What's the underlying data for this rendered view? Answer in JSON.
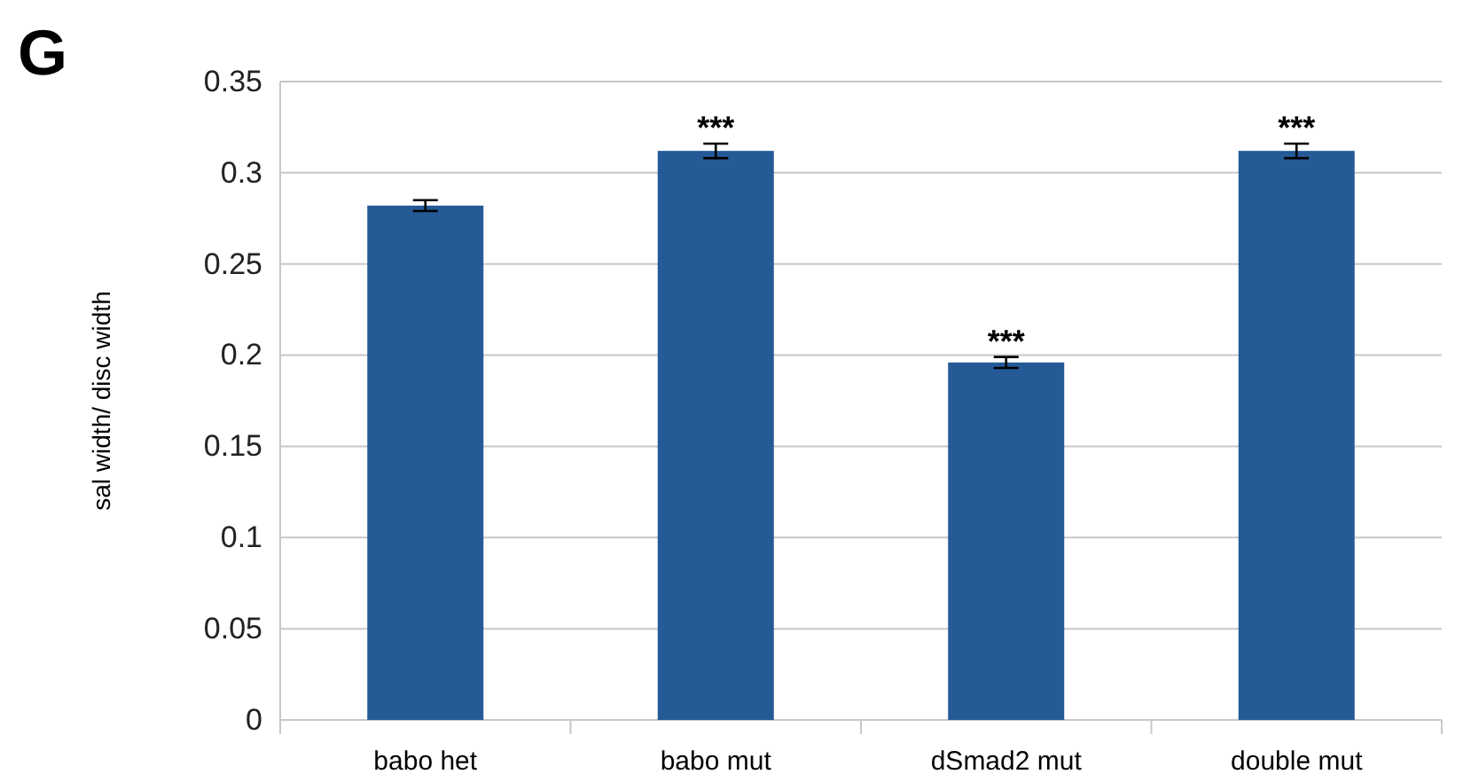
{
  "chart_data": {
    "type": "bar",
    "title": "G",
    "ylabel": "sal width/ disc width",
    "categories": [
      "babo het",
      "babo mut",
      "dSmad2 mut",
      "double mut"
    ],
    "values": [
      0.282,
      0.312,
      0.196,
      0.312
    ],
    "errors": [
      0.003,
      0.004,
      0.003,
      0.004
    ],
    "color": "#255a97",
    "ylim": [
      0,
      0.35
    ],
    "yticks": [
      {
        "value": 0,
        "label": "0"
      },
      0.05,
      0.1,
      0.15,
      0.2,
      0.25,
      0.3,
      0.35
    ],
    "grid": "y",
    "annotations": [
      {
        "text": "***",
        "x": "babo mut",
        "y": 0.316
      },
      {
        "text": "***",
        "x": "dSmad2 mut",
        "y": 0.199
      },
      {
        "text": "***",
        "x": "double mut",
        "y": 0.316
      }
    ]
  }
}
